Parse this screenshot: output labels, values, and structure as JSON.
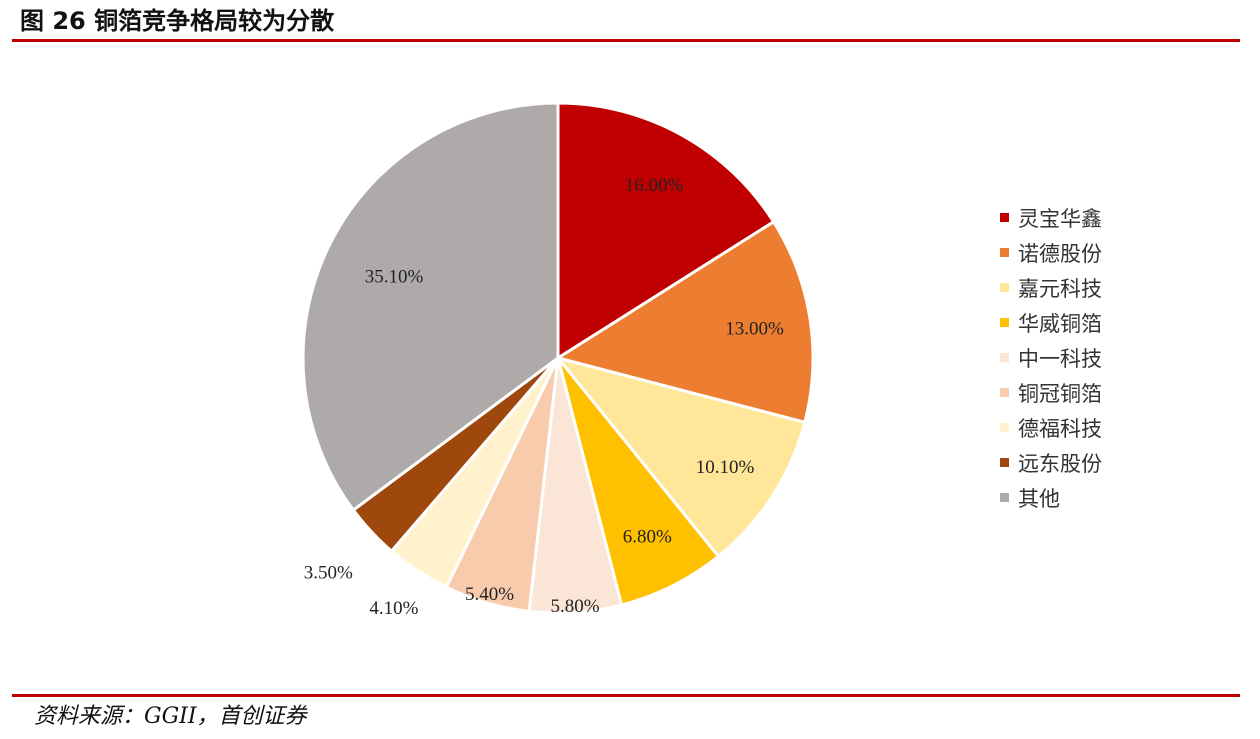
{
  "figure": {
    "title": "图 26 铜箔竞争格局较为分散",
    "source": "资料来源：GGII，首创证券"
  },
  "chart_data": {
    "type": "pie",
    "title": "",
    "slices": [
      {
        "name": "灵宝华鑫",
        "value": 16.0,
        "label": "16.00%",
        "color": "#C00000"
      },
      {
        "name": "诺德股份",
        "value": 13.0,
        "label": "13.00%",
        "color": "#ED7D31"
      },
      {
        "name": "嘉元科技",
        "value": 10.1,
        "label": "10.10%",
        "color": "#FFE699"
      },
      {
        "name": "华威铜箔",
        "value": 6.8,
        "label": "6.80%",
        "color": "#FFC000"
      },
      {
        "name": "中一科技",
        "value": 5.8,
        "label": "5.80%",
        "color": "#FBE5D6"
      },
      {
        "name": "铜冠铜箔",
        "value": 5.4,
        "label": "5.40%",
        "color": "#F8CBAD"
      },
      {
        "name": "德福科技",
        "value": 4.1,
        "label": "4.10%",
        "color": "#FFF2CC"
      },
      {
        "name": "远东股份",
        "value": 3.5,
        "label": "3.50%",
        "color": "#9E480E"
      },
      {
        "name": "其他",
        "value": 35.1,
        "label": "35.10%",
        "color": "#AEAAAA"
      }
    ],
    "legend_position": "right"
  }
}
